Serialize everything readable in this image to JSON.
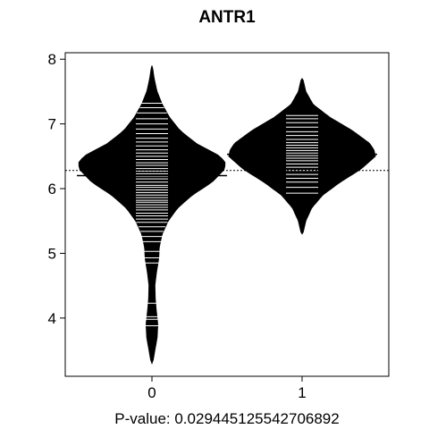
{
  "chart_data": {
    "type": "beanplot",
    "title": "ANTR1",
    "xlabel": "P-value: 0.029445125542706892",
    "ylabel": "",
    "categories": [
      "0",
      "1"
    ],
    "yticks": [
      4,
      5,
      6,
      7,
      8
    ],
    "ylim": [
      3.1,
      8.1
    ],
    "overall_mean_line": 6.28,
    "groups": [
      {
        "name": "0",
        "mean": 6.2,
        "density": [
          [
            3.3,
            0.01
          ],
          [
            3.5,
            0.04
          ],
          [
            3.7,
            0.07
          ],
          [
            3.9,
            0.08
          ],
          [
            4.1,
            0.06
          ],
          [
            4.3,
            0.045
          ],
          [
            4.5,
            0.04
          ],
          [
            4.7,
            0.06
          ],
          [
            4.9,
            0.09
          ],
          [
            5.1,
            0.1
          ],
          [
            5.3,
            0.14
          ],
          [
            5.5,
            0.22
          ],
          [
            5.7,
            0.35
          ],
          [
            5.9,
            0.55
          ],
          [
            6.1,
            0.82
          ],
          [
            6.3,
            0.99
          ],
          [
            6.4,
            1.0
          ],
          [
            6.5,
            0.93
          ],
          [
            6.7,
            0.6
          ],
          [
            6.9,
            0.38
          ],
          [
            7.1,
            0.24
          ],
          [
            7.3,
            0.14
          ],
          [
            7.5,
            0.07
          ],
          [
            7.7,
            0.03
          ],
          [
            7.9,
            0.005
          ]
        ],
        "points": [
          3.88,
          3.98,
          4.02,
          4.23,
          4.85,
          4.93,
          5.03,
          5.18,
          5.26,
          5.34,
          5.41,
          5.48,
          5.53,
          5.58,
          5.62,
          5.67,
          5.71,
          5.75,
          5.79,
          5.82,
          5.86,
          5.9,
          5.94,
          5.98,
          6.02,
          6.05,
          6.1,
          6.15,
          6.19,
          6.23,
          6.27,
          6.31,
          6.36,
          6.4,
          6.45,
          6.5,
          6.55,
          6.6,
          6.66,
          6.72,
          6.78,
          6.85,
          6.92,
          7.0,
          7.08,
          7.17,
          7.25,
          7.32
        ]
      },
      {
        "name": "1",
        "mean": 6.53,
        "density": [
          [
            5.3,
            0.01
          ],
          [
            5.5,
            0.05
          ],
          [
            5.7,
            0.13
          ],
          [
            5.9,
            0.28
          ],
          [
            6.1,
            0.52
          ],
          [
            6.3,
            0.8
          ],
          [
            6.5,
            1.0
          ],
          [
            6.6,
            0.98
          ],
          [
            6.7,
            0.92
          ],
          [
            6.9,
            0.68
          ],
          [
            7.1,
            0.38
          ],
          [
            7.3,
            0.15
          ],
          [
            7.5,
            0.05
          ],
          [
            7.7,
            0.01
          ]
        ],
        "points": [
          5.93,
          6.02,
          6.1,
          6.16,
          6.22,
          6.28,
          6.33,
          6.38,
          6.43,
          6.47,
          6.51,
          6.55,
          6.59,
          6.63,
          6.67,
          6.71,
          6.76,
          6.82,
          6.88,
          6.95,
          7.02,
          7.08,
          7.13
        ]
      }
    ]
  }
}
